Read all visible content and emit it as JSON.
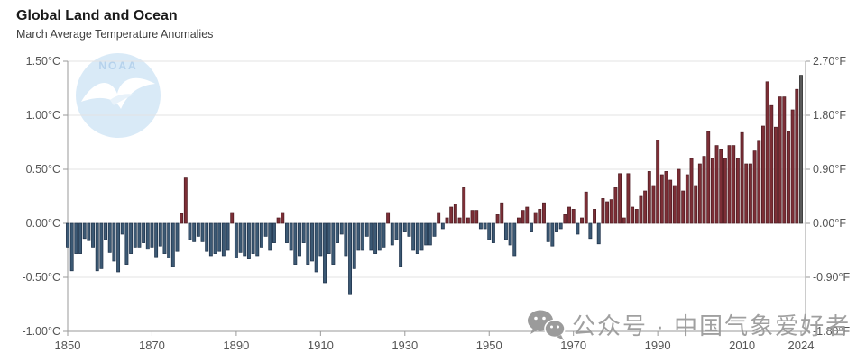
{
  "header": {
    "title": "Global Land and Ocean",
    "subtitle": "March Average Temperature Anomalies"
  },
  "watermark": {
    "noaa_label": "NOAA",
    "wechat_icon": "wechat-icon",
    "wechat_text": "公众号 · 中国气象爱好者"
  },
  "chart_data": {
    "type": "bar",
    "title": "Global Land and Ocean",
    "subtitle": "March Average Temperature Anomalies",
    "year_start": 1850,
    "year_end": 2024,
    "values": [
      -0.22,
      -0.44,
      -0.28,
      -0.28,
      -0.14,
      -0.16,
      -0.22,
      -0.44,
      -0.42,
      -0.15,
      -0.27,
      -0.35,
      -0.45,
      -0.1,
      -0.38,
      -0.28,
      -0.22,
      -0.22,
      -0.18,
      -0.24,
      -0.22,
      -0.31,
      -0.21,
      -0.28,
      -0.32,
      -0.4,
      -0.26,
      0.09,
      0.42,
      -0.15,
      -0.17,
      -0.12,
      -0.17,
      -0.26,
      -0.3,
      -0.28,
      -0.26,
      -0.3,
      -0.25,
      0.1,
      -0.32,
      -0.27,
      -0.3,
      -0.33,
      -0.28,
      -0.3,
      -0.22,
      -0.12,
      -0.25,
      -0.18,
      0.05,
      0.1,
      -0.18,
      -0.25,
      -0.38,
      -0.3,
      -0.18,
      -0.38,
      -0.35,
      -0.45,
      -0.3,
      -0.55,
      -0.28,
      -0.38,
      -0.18,
      -0.1,
      -0.3,
      -0.66,
      -0.42,
      -0.25,
      -0.25,
      -0.12,
      -0.25,
      -0.28,
      -0.25,
      -0.22,
      0.1,
      -0.2,
      -0.15,
      -0.4,
      -0.08,
      -0.12,
      -0.25,
      -0.28,
      -0.25,
      -0.2,
      -0.2,
      -0.12,
      0.1,
      -0.05,
      0.05,
      0.15,
      0.18,
      0.05,
      0.33,
      0.05,
      0.12,
      0.12,
      -0.05,
      -0.05,
      -0.15,
      -0.18,
      0.08,
      0.19,
      -0.15,
      -0.2,
      -0.3,
      0.05,
      0.12,
      0.15,
      -0.08,
      0.1,
      0.13,
      0.19,
      -0.17,
      -0.21,
      -0.08,
      -0.05,
      0.08,
      0.15,
      0.13,
      -0.1,
      0.05,
      0.29,
      -0.14,
      0.13,
      -0.19,
      0.23,
      0.2,
      0.22,
      0.33,
      0.46,
      0.05,
      0.46,
      0.15,
      0.13,
      0.25,
      0.3,
      0.48,
      0.35,
      0.77,
      0.45,
      0.48,
      0.4,
      0.35,
      0.5,
      0.3,
      0.45,
      0.6,
      0.35,
      0.55,
      0.62,
      0.85,
      0.6,
      0.72,
      0.68,
      0.6,
      0.72,
      0.72,
      0.6,
      0.84,
      0.55,
      0.55,
      0.67,
      0.76,
      0.9,
      1.31,
      1.09,
      0.89,
      1.17,
      1.17,
      0.85,
      1.05,
      1.24,
      1.37
    ],
    "latest_year": 2024,
    "ylim_c": [
      -1.0,
      1.5
    ],
    "yticks_c": [
      1.5,
      1.0,
      0.5,
      0.0,
      -0.5,
      -1.0
    ],
    "ytick_labels_left": [
      "1.50°C",
      "1.00°C",
      "0.50°C",
      "0.00°C",
      "-0.50°C",
      "-1.00°C"
    ],
    "ytick_labels_right": [
      "2.70°F",
      "1.80°F",
      "0.90°F",
      "0.00°F",
      "-0.90°F",
      "-1.80°F"
    ],
    "xticks": [
      1850,
      1870,
      1890,
      1910,
      1930,
      1950,
      1970,
      1990,
      2010,
      2024
    ],
    "xtick_labels": [
      "1850",
      "1870",
      "1890",
      "1910",
      "1930",
      "1950",
      "1970",
      "1990",
      "2010",
      "2024"
    ],
    "grid": true,
    "legend": "none",
    "colors": {
      "positive": "#7c2e36",
      "positive_stroke": "#4c1b21",
      "negative": "#3c5974",
      "negative_stroke": "#1d3149",
      "latest": "#5a5a5a",
      "latest_stroke": "#2c2c2c",
      "grid": "#e3e3e3",
      "axis": "#9a9a9a",
      "tick_text": "#555555"
    }
  }
}
